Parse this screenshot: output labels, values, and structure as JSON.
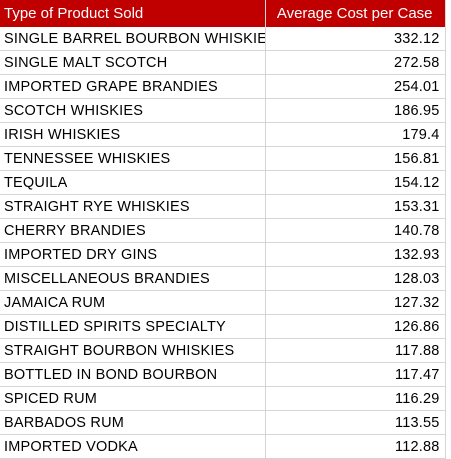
{
  "table": {
    "header": {
      "product": "Type of Product Sold",
      "cost": "Average Cost per Case"
    },
    "rows": [
      {
        "product": "SINGLE BARREL BOURBON WHISKIES",
        "cost": "332.12"
      },
      {
        "product": "SINGLE MALT SCOTCH",
        "cost": "272.58"
      },
      {
        "product": "IMPORTED GRAPE BRANDIES",
        "cost": "254.01"
      },
      {
        "product": "SCOTCH WHISKIES",
        "cost": "186.95"
      },
      {
        "product": "IRISH WHISKIES",
        "cost": "179.4"
      },
      {
        "product": "TENNESSEE WHISKIES",
        "cost": "156.81"
      },
      {
        "product": "TEQUILA",
        "cost": "154.12"
      },
      {
        "product": "STRAIGHT RYE WHISKIES",
        "cost": "153.31"
      },
      {
        "product": "CHERRY BRANDIES",
        "cost": "140.78"
      },
      {
        "product": "IMPORTED DRY GINS",
        "cost": "132.93"
      },
      {
        "product": "MISCELLANEOUS BRANDIES",
        "cost": "128.03"
      },
      {
        "product": "JAMAICA RUM",
        "cost": "127.32"
      },
      {
        "product": "DISTILLED SPIRITS SPECIALTY",
        "cost": "126.86"
      },
      {
        "product": "STRAIGHT BOURBON WHISKIES",
        "cost": "117.88"
      },
      {
        "product": "BOTTLED IN BOND BOURBON",
        "cost": "117.47"
      },
      {
        "product": "SPICED RUM",
        "cost": "116.29"
      },
      {
        "product": "BARBADOS RUM",
        "cost": "113.55"
      },
      {
        "product": "IMPORTED VODKA",
        "cost": "112.88"
      }
    ]
  },
  "colors": {
    "header_bg": "#c00000",
    "header_text": "#ffffff",
    "gridline": "#d4d4d4"
  }
}
